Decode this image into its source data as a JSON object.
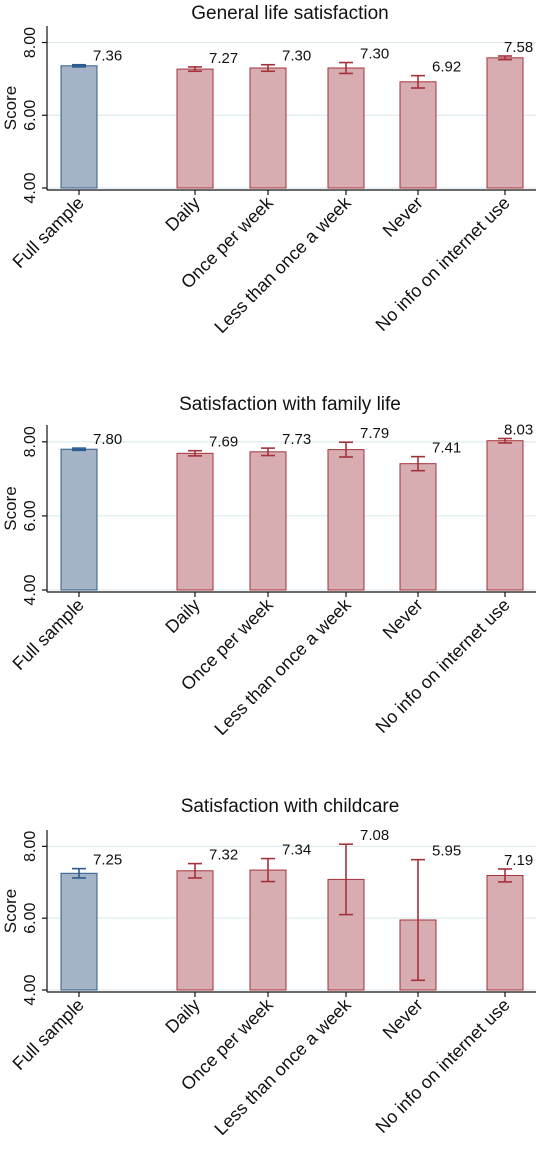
{
  "chart_data": [
    {
      "type": "bar",
      "title": "General life satisfaction",
      "ylabel": "Score",
      "xlabel": "",
      "ylim": [
        4,
        8.4
      ],
      "yticks": [
        4,
        6,
        8
      ],
      "ytick_labels": [
        "4.00",
        "6.00",
        "8.00"
      ],
      "grid": true,
      "categories": [
        "Full sample",
        "Daily",
        "Once per week",
        "Less than once a week",
        "Never",
        "No info on internet use"
      ],
      "values": [
        7.36,
        7.27,
        7.3,
        7.3,
        6.92,
        7.58
      ],
      "value_labels": [
        "7.36",
        "7.27",
        "7.30",
        "7.30",
        "6.92",
        "7.58"
      ],
      "ci_low": [
        7.33,
        7.21,
        7.21,
        7.15,
        6.75,
        7.53
      ],
      "ci_high": [
        7.39,
        7.33,
        7.39,
        7.45,
        7.09,
        7.63
      ],
      "bar_colors": [
        "#a4b4c6",
        "#d7adb2",
        "#d7adb2",
        "#d7adb2",
        "#d7adb2",
        "#d7adb2"
      ],
      "edge_colors": [
        "#2c5c8f",
        "#a3323a",
        "#a3323a",
        "#a3323a",
        "#a3323a",
        "#a3323a"
      ]
    },
    {
      "type": "bar",
      "title": "Satisfaction with family life",
      "ylabel": "Score",
      "xlabel": "",
      "ylim": [
        4,
        8.4
      ],
      "yticks": [
        4,
        6,
        8
      ],
      "ytick_labels": [
        "4.00",
        "6.00",
        "8.00"
      ],
      "grid": true,
      "categories": [
        "Full sample",
        "Daily",
        "Once per week",
        "Less than once a week",
        "Never",
        "No info on internet use"
      ],
      "values": [
        7.8,
        7.69,
        7.73,
        7.79,
        7.41,
        8.03
      ],
      "value_labels": [
        "7.80",
        "7.69",
        "7.73",
        "7.79",
        "7.41",
        "8.03"
      ],
      "ci_low": [
        7.77,
        7.62,
        7.63,
        7.59,
        7.22,
        7.97
      ],
      "ci_high": [
        7.83,
        7.76,
        7.83,
        7.99,
        7.6,
        8.09
      ],
      "bar_colors": [
        "#a4b4c6",
        "#d7adb2",
        "#d7adb2",
        "#d7adb2",
        "#d7adb2",
        "#d7adb2"
      ],
      "edge_colors": [
        "#2c5c8f",
        "#a3323a",
        "#a3323a",
        "#a3323a",
        "#a3323a",
        "#a3323a"
      ]
    },
    {
      "type": "bar",
      "title": "Satisfaction with childcare",
      "ylabel": "Score",
      "xlabel": "",
      "ylim": [
        4,
        8.4
      ],
      "yticks": [
        4,
        6,
        8
      ],
      "ytick_labels": [
        "4.00",
        "6.00",
        "8.00"
      ],
      "grid": true,
      "categories": [
        "Full sample",
        "Daily",
        "Once per week",
        "Less than once a week",
        "Never",
        "No info on internet use"
      ],
      "values": [
        7.25,
        7.32,
        7.34,
        7.08,
        5.95,
        7.19
      ],
      "value_labels": [
        "7.25",
        "7.32",
        "7.34",
        "7.08",
        "5.95",
        "7.19"
      ],
      "ci_low": [
        7.12,
        7.12,
        7.02,
        6.1,
        4.27,
        7.01
      ],
      "ci_high": [
        7.38,
        7.52,
        7.66,
        8.06,
        7.63,
        7.37
      ],
      "bar_colors": [
        "#a4b4c6",
        "#d7adb2",
        "#d7adb2",
        "#d7adb2",
        "#d7adb2",
        "#d7adb2"
      ],
      "edge_colors": [
        "#2c5c8f",
        "#a3323a",
        "#a3323a",
        "#a3323a",
        "#a3323a",
        "#a3323a"
      ]
    }
  ],
  "style": {
    "grid_color": "#d8e6ec",
    "axis_color": "#111111",
    "background": "#ffffff"
  }
}
